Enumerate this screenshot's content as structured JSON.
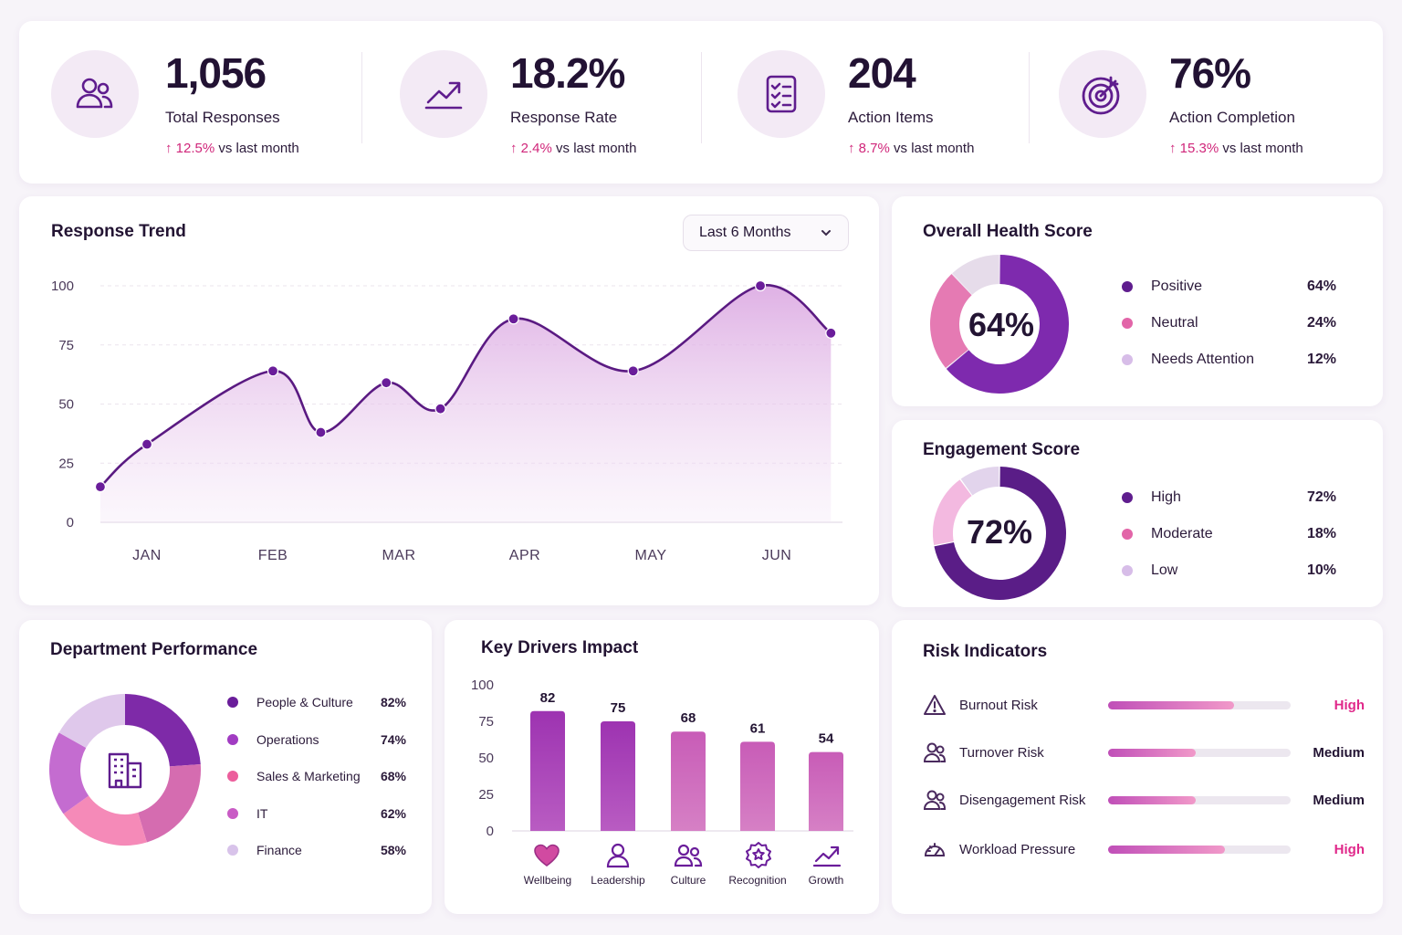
{
  "kpis": [
    {
      "value": "1,056",
      "label": "Total Responses",
      "delta": "12.5%",
      "delta_suffix": "vs last month",
      "icon": "users-icon"
    },
    {
      "value": "18.2%",
      "label": "Response Rate",
      "delta": "2.4%",
      "delta_suffix": "vs last month",
      "icon": "trend-up-icon"
    },
    {
      "value": "204",
      "label": "Action Items",
      "delta": "8.7%",
      "delta_suffix": "vs last month",
      "icon": "checklist-icon"
    },
    {
      "value": "76%",
      "label": "Action Completion",
      "delta": "15.3%",
      "delta_suffix": "vs last month",
      "icon": "target-icon"
    }
  ],
  "trend": {
    "title": "Response Trend",
    "range_label": "Last 6 Months"
  },
  "health": {
    "title": "Overall Health Score",
    "center": "64%",
    "legend": [
      {
        "label": "Positive",
        "value": "64%",
        "color": "#5f1d8e"
      },
      {
        "label": "Neutral",
        "value": "24%",
        "color": "#e265a8"
      },
      {
        "label": "Needs Attention",
        "value": "12%",
        "color": "#d7bde8"
      }
    ]
  },
  "engagement": {
    "title": "Engagement Score",
    "center": "72%",
    "legend": [
      {
        "label": "High",
        "value": "72%",
        "color": "#5f1d8e"
      },
      {
        "label": "Moderate",
        "value": "18%",
        "color": "#e265a8"
      },
      {
        "label": "Low",
        "value": "10%",
        "color": "#d7bde8"
      }
    ]
  },
  "department": {
    "title": "Department Performance",
    "legend": [
      {
        "label": "People & Culture",
        "value": "82%",
        "color": "#6a1d9a"
      },
      {
        "label": "Operations",
        "value": "74%",
        "color": "#a13cc2"
      },
      {
        "label": "Sales & Marketing",
        "value": "68%",
        "color": "#ec5e9c"
      },
      {
        "label": "IT",
        "value": "62%",
        "color": "#c95bc5"
      },
      {
        "label": "Finance",
        "value": "58%",
        "color": "#d8c3ea"
      }
    ]
  },
  "drivers": {
    "title": "Key Drivers Impact",
    "labels": [
      "Wellbeing",
      "Leadership",
      "Culture",
      "Recognition",
      "Growth"
    ]
  },
  "risk": {
    "title": "Risk Indicators",
    "items": [
      {
        "label": "Burnout Risk",
        "level": "High",
        "level_color": "#e0288a",
        "fill": 0.69,
        "icon": "warning-icon"
      },
      {
        "label": "Turnover Risk",
        "level": "Medium",
        "level_color": "#231433",
        "fill": 0.48,
        "icon": "users-icon"
      },
      {
        "label": "Disengagement Risk",
        "level": "Medium",
        "level_color": "#231433",
        "fill": 0.48,
        "icon": "users-icon"
      },
      {
        "label": "Workload Pressure",
        "level": "High",
        "level_color": "#e0288a",
        "fill": 0.64,
        "icon": "gauge-icon"
      }
    ]
  },
  "chart_data": [
    {
      "type": "area",
      "title": "Response Trend",
      "x": [
        "JAN",
        "FEB",
        "MAR",
        "APR",
        "MAY",
        "JUN"
      ],
      "xlabel": "",
      "ylabel": "",
      "ylim": [
        0,
        100
      ],
      "yticks": [
        0,
        25,
        50,
        75,
        100
      ],
      "series": [
        {
          "name": "",
          "points": [
            [
              0.35,
              15
            ],
            [
              0.0,
              33
            ],
            [
              1.0,
              64
            ],
            [
              1.38,
              38
            ],
            [
              1.9,
              59
            ],
            [
              2.33,
              48
            ],
            [
              2.91,
              86
            ],
            [
              3.86,
              64
            ],
            [
              4.87,
              100
            ],
            [
              5.43,
              80
            ]
          ]
        }
      ],
      "grid": true
    },
    {
      "type": "pie",
      "title": "Overall Health Score",
      "labels": [
        "Positive",
        "Neutral",
        "Needs Attention"
      ],
      "values": [
        64,
        24,
        12
      ]
    },
    {
      "type": "pie",
      "title": "Engagement Score",
      "labels": [
        "High",
        "Moderate",
        "Low"
      ],
      "values": [
        72,
        18,
        10
      ]
    },
    {
      "type": "pie",
      "title": "Department Performance",
      "labels": [
        "People & Culture",
        "Operations",
        "Sales & Marketing",
        "IT",
        "Finance"
      ],
      "values": [
        82,
        74,
        68,
        62,
        58
      ]
    },
    {
      "type": "bar",
      "title": "Key Drivers Impact",
      "categories": [
        "Wellbeing",
        "Leadership",
        "Culture",
        "Recognition",
        "Growth"
      ],
      "values": [
        82,
        75,
        68,
        61,
        54
      ],
      "ylim": [
        0,
        100
      ],
      "yticks": [
        0,
        25,
        50,
        75,
        100
      ]
    }
  ]
}
